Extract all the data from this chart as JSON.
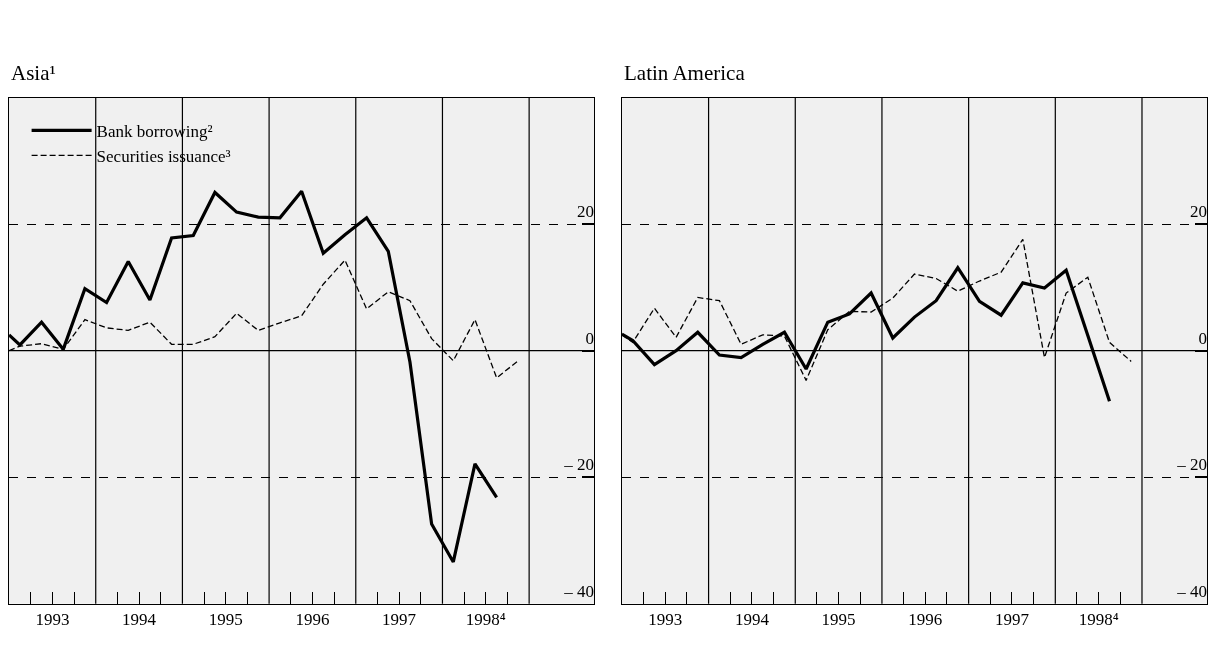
{
  "chart_data": [
    {
      "type": "line",
      "title": "Asia¹",
      "xlim": [
        1993,
        1999.75
      ],
      "ylim": [
        -40,
        40
      ],
      "xticks": [
        {
          "value": 1993.25,
          "label": null
        },
        {
          "value": 1993.5,
          "label": "1993"
        },
        {
          "value": 1993.75,
          "label": null
        },
        {
          "value": 1994.25,
          "label": null
        },
        {
          "value": 1994.5,
          "label": "1994"
        },
        {
          "value": 1994.75,
          "label": null
        },
        {
          "value": 1995.25,
          "label": null
        },
        {
          "value": 1995.5,
          "label": "1995"
        },
        {
          "value": 1995.75,
          "label": null
        },
        {
          "value": 1996.25,
          "label": null
        },
        {
          "value": 1996.5,
          "label": "1996"
        },
        {
          "value": 1996.75,
          "label": null
        },
        {
          "value": 1997.25,
          "label": null
        },
        {
          "value": 1997.5,
          "label": "1997"
        },
        {
          "value": 1997.75,
          "label": null
        },
        {
          "value": 1998.25,
          "label": null
        },
        {
          "value": 1998.5,
          "label": "1998⁴"
        },
        {
          "value": 1998.75,
          "label": null
        }
      ],
      "yticks": [
        {
          "value": 20,
          "label": "20"
        },
        {
          "value": 0,
          "label": "0"
        },
        {
          "value": -20,
          "label": "– 20"
        },
        {
          "value": -40,
          "label": "– 40"
        }
      ],
      "grid": "y",
      "legend": "top left",
      "ref_lines": [
        {
          "axis": "y",
          "value": 0,
          "line_style": "solid",
          "color": "#000000"
        },
        {
          "axis": "x",
          "value": 1994,
          "line_style": "solid",
          "color": "#000000"
        },
        {
          "axis": "x",
          "value": 1995,
          "line_style": "solid",
          "color": "#000000"
        },
        {
          "axis": "x",
          "value": 1996,
          "line_style": "solid",
          "color": "#000000"
        },
        {
          "axis": "x",
          "value": 1997,
          "line_style": "solid",
          "color": "#000000"
        },
        {
          "axis": "x",
          "value": 1998,
          "line_style": "solid",
          "color": "#000000"
        },
        {
          "axis": "x",
          "value": 1999,
          "line_style": "solid",
          "color": "#000000"
        }
      ],
      "series": [
        {
          "name": "Bank borrowing²",
          "color": "#000000",
          "line_style": "solid",
          "x": [
            1993.0,
            1993.125,
            1993.375,
            1993.625,
            1993.875,
            1994.125,
            1994.375,
            1994.625,
            1994.875,
            1995.125,
            1995.375,
            1995.625,
            1995.875,
            1996.125,
            1996.375,
            1996.625,
            1996.875,
            1997.125,
            1997.375,
            1997.625,
            1997.875,
            1998.125,
            1998.375,
            1998.625
          ],
          "values": [
            2.5,
            0.9,
            4.5,
            0.2,
            9.8,
            7.6,
            14.1,
            8.0,
            17.8,
            18.2,
            25.0,
            21.9,
            21.1,
            21.0,
            25.2,
            15.4,
            18.3,
            21.0,
            15.7,
            -1.8,
            -27.4,
            -33.4,
            -17.9,
            -23.2
          ]
        },
        {
          "name": "Securities issuance³",
          "color": "#000000",
          "line_style": "dashed",
          "x": [
            1993.0,
            1993.125,
            1993.375,
            1993.625,
            1993.875,
            1994.125,
            1994.375,
            1994.625,
            1994.875,
            1995.125,
            1995.375,
            1995.625,
            1995.875,
            1996.125,
            1996.375,
            1996.625,
            1996.875,
            1997.125,
            1997.375,
            1997.625,
            1997.875,
            1998.125,
            1998.375,
            1998.625,
            1998.875
          ],
          "values": [
            0.0,
            0.7,
            1.1,
            0.2,
            4.9,
            3.6,
            3.2,
            4.5,
            1.0,
            1.0,
            2.2,
            5.9,
            3.2,
            4.4,
            5.5,
            10.5,
            14.3,
            6.6,
            9.3,
            7.9,
            1.9,
            -1.6,
            4.9,
            -4.3,
            -1.6
          ]
        }
      ]
    },
    {
      "type": "line",
      "title": "Latin America",
      "xlim": [
        1993,
        1999.75
      ],
      "ylim": [
        -40,
        40
      ],
      "xticks": [
        {
          "value": 1993.25,
          "label": null
        },
        {
          "value": 1993.5,
          "label": "1993"
        },
        {
          "value": 1993.75,
          "label": null
        },
        {
          "value": 1994.25,
          "label": null
        },
        {
          "value": 1994.5,
          "label": "1994"
        },
        {
          "value": 1994.75,
          "label": null
        },
        {
          "value": 1995.25,
          "label": null
        },
        {
          "value": 1995.5,
          "label": "1995"
        },
        {
          "value": 1995.75,
          "label": null
        },
        {
          "value": 1996.25,
          "label": null
        },
        {
          "value": 1996.5,
          "label": "1996"
        },
        {
          "value": 1996.75,
          "label": null
        },
        {
          "value": 1997.25,
          "label": null
        },
        {
          "value": 1997.5,
          "label": "1997"
        },
        {
          "value": 1997.75,
          "label": null
        },
        {
          "value": 1998.25,
          "label": null
        },
        {
          "value": 1998.5,
          "label": "1998⁴"
        },
        {
          "value": 1998.75,
          "label": null
        }
      ],
      "yticks": [
        {
          "value": 20,
          "label": "20"
        },
        {
          "value": 0,
          "label": "0"
        },
        {
          "value": -20,
          "label": "– 20"
        },
        {
          "value": -40,
          "label": "– 40"
        }
      ],
      "grid": "y",
      "ref_lines": [
        {
          "axis": "y",
          "value": 0,
          "line_style": "solid",
          "color": "#000000"
        },
        {
          "axis": "x",
          "value": 1994,
          "line_style": "solid",
          "color": "#000000"
        },
        {
          "axis": "x",
          "value": 1995,
          "line_style": "solid",
          "color": "#000000"
        },
        {
          "axis": "x",
          "value": 1996,
          "line_style": "solid",
          "color": "#000000"
        },
        {
          "axis": "x",
          "value": 1997,
          "line_style": "solid",
          "color": "#000000"
        },
        {
          "axis": "x",
          "value": 1998,
          "line_style": "solid",
          "color": "#000000"
        },
        {
          "axis": "x",
          "value": 1999,
          "line_style": "solid",
          "color": "#000000"
        }
      ],
      "series": [
        {
          "color": "#000000",
          "line_style": "solid",
          "x": [
            1993.0,
            1993.125,
            1993.375,
            1993.625,
            1993.875,
            1994.125,
            1994.375,
            1994.625,
            1994.875,
            1995.125,
            1995.375,
            1995.625,
            1995.875,
            1996.125,
            1996.375,
            1996.625,
            1996.875,
            1997.125,
            1997.375,
            1997.625,
            1997.875,
            1998.125,
            1998.375,
            1998.625
          ],
          "values": [
            2.6,
            1.6,
            -2.2,
            0.0,
            2.9,
            -0.7,
            -1.1,
            1.0,
            2.9,
            -2.9,
            4.5,
            5.8,
            9.1,
            2.0,
            5.3,
            7.9,
            13.1,
            7.8,
            5.6,
            10.7,
            9.9,
            12.7,
            2.4,
            -8.0
          ]
        },
        {
          "color": "#000000",
          "line_style": "dashed",
          "x": [
            1993.0,
            1993.125,
            1993.375,
            1993.625,
            1993.875,
            1994.125,
            1994.375,
            1994.625,
            1994.875,
            1995.125,
            1995.375,
            1995.625,
            1995.875,
            1996.125,
            1996.375,
            1996.625,
            1996.875,
            1997.125,
            1997.375,
            1997.625,
            1997.875,
            1998.125,
            1998.375,
            1998.625,
            1998.875
          ],
          "values": [
            2.5,
            1.3,
            6.7,
            2.1,
            8.4,
            7.9,
            1.0,
            2.5,
            2.3,
            -4.7,
            3.3,
            6.2,
            6.1,
            8.3,
            12.1,
            11.4,
            9.4,
            11.0,
            12.4,
            17.6,
            -1.1,
            9.1,
            11.6,
            1.3,
            -1.7
          ]
        }
      ]
    }
  ]
}
